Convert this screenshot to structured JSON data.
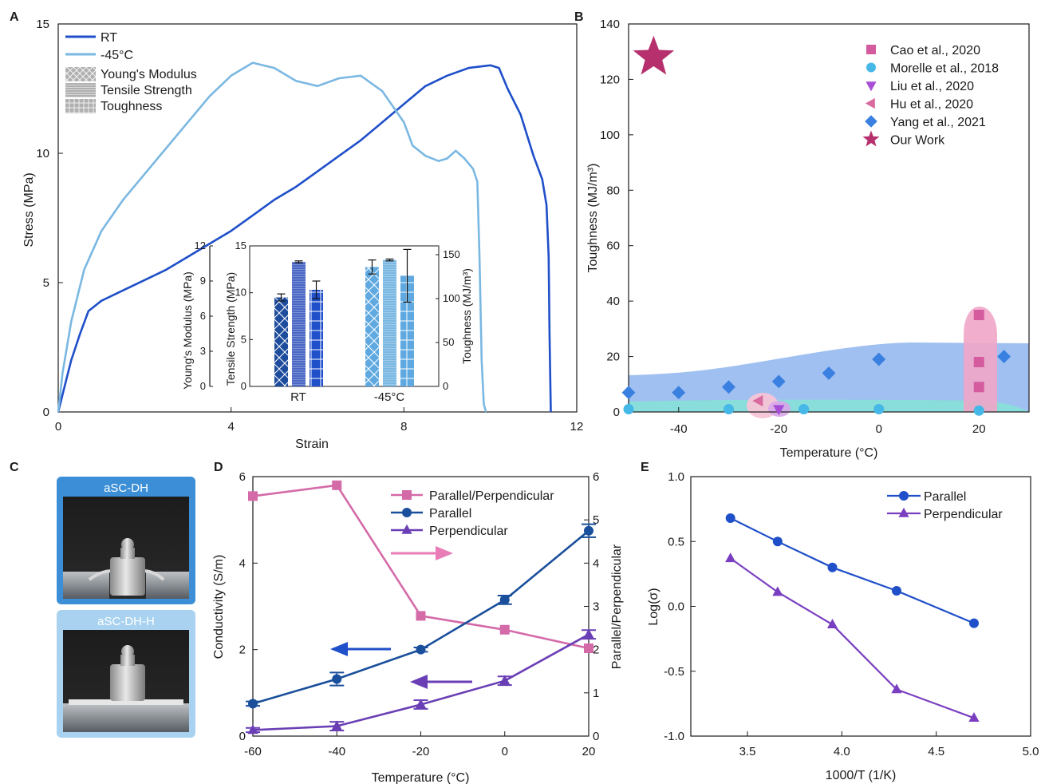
{
  "panels": {
    "A": "A",
    "B": "B",
    "C": "C",
    "D": "D",
    "E": "E"
  },
  "chart_data": [
    {
      "id": "A",
      "type": "line",
      "xlabel": "Strain",
      "ylabel": "Stress (MPa)",
      "xlim": [
        0,
        12
      ],
      "ylim": [
        0,
        15
      ],
      "xticks": [
        0,
        4,
        8,
        12
      ],
      "yticks": [
        0,
        5,
        10,
        15
      ],
      "legend": [
        {
          "name": "RT",
          "color": "#1f4fc9"
        },
        {
          "name": "-45°C",
          "color": "#7ab8e2"
        },
        {
          "name": "Young's Modulus",
          "pattern": "crosshatch"
        },
        {
          "name": "Tensile Strength",
          "pattern": "dense"
        },
        {
          "name": "Toughness",
          "pattern": "grid"
        }
      ],
      "series": [
        {
          "name": "RT",
          "color": "#1f4fc9",
          "points": [
            [
              0,
              0
            ],
            [
              0.15,
              1.0
            ],
            [
              0.3,
              2.0
            ],
            [
              0.5,
              3.0
            ],
            [
              0.7,
              3.9
            ],
            [
              1.0,
              4.3
            ],
            [
              1.5,
              4.7
            ],
            [
              2.0,
              5.1
            ],
            [
              2.5,
              5.5
            ],
            [
              3.0,
              6.0
            ],
            [
              3.5,
              6.5
            ],
            [
              4.0,
              7.0
            ],
            [
              4.5,
              7.6
            ],
            [
              5.0,
              8.2
            ],
            [
              5.5,
              8.7
            ],
            [
              6.0,
              9.3
            ],
            [
              6.5,
              9.9
            ],
            [
              7.0,
              10.5
            ],
            [
              7.5,
              11.2
            ],
            [
              8.0,
              11.9
            ],
            [
              8.5,
              12.6
            ],
            [
              9.0,
              13.0
            ],
            [
              9.5,
              13.3
            ],
            [
              10.0,
              13.4
            ],
            [
              10.2,
              13.3
            ],
            [
              10.4,
              12.5
            ],
            [
              10.7,
              11.5
            ],
            [
              11.0,
              9.9
            ],
            [
              11.2,
              9.0
            ],
            [
              11.3,
              8.0
            ],
            [
              11.35,
              6.0
            ],
            [
              11.37,
              3.0
            ],
            [
              11.4,
              0
            ]
          ]
        },
        {
          "name": "-45°C",
          "color": "#7ab8e2",
          "points": [
            [
              0,
              0
            ],
            [
              0.1,
              1.5
            ],
            [
              0.3,
              3.5
            ],
            [
              0.6,
              5.5
            ],
            [
              1.0,
              7.0
            ],
            [
              1.5,
              8.2
            ],
            [
              2.0,
              9.2
            ],
            [
              2.5,
              10.2
            ],
            [
              3.0,
              11.2
            ],
            [
              3.5,
              12.2
            ],
            [
              4.0,
              13.0
            ],
            [
              4.5,
              13.5
            ],
            [
              5.0,
              13.3
            ],
            [
              5.5,
              12.8
            ],
            [
              6.0,
              12.6
            ],
            [
              6.5,
              12.9
            ],
            [
              7.0,
              13.0
            ],
            [
              7.5,
              12.4
            ],
            [
              8.0,
              11.2
            ],
            [
              8.2,
              10.3
            ],
            [
              8.5,
              9.9
            ],
            [
              8.8,
              9.7
            ],
            [
              9.0,
              9.8
            ],
            [
              9.2,
              10.1
            ],
            [
              9.4,
              9.8
            ],
            [
              9.6,
              9.4
            ],
            [
              9.7,
              8.9
            ],
            [
              9.75,
              6.0
            ],
            [
              9.8,
              2.0
            ],
            [
              9.85,
              0.3
            ],
            [
              9.9,
              0
            ]
          ]
        }
      ]
    },
    {
      "id": "A-inset",
      "type": "bar",
      "categories": [
        "RT",
        "-45°C"
      ],
      "axes": [
        {
          "label": "Young's Modulus (MPa)",
          "ticks": [
            0,
            3,
            6,
            9,
            12
          ],
          "lim": [
            0,
            12
          ]
        },
        {
          "label": "Tensile Strength (MPa)",
          "ticks": [
            0,
            5,
            10,
            15
          ],
          "lim": [
            0,
            15
          ]
        },
        {
          "label": "Toughness (MJ/m³)",
          "ticks": [
            0,
            50,
            100,
            150
          ],
          "lim": [
            0,
            160
          ]
        }
      ],
      "series": [
        {
          "name": "Young's Modulus",
          "axis": 0,
          "values": [
            7.6,
            10.2
          ],
          "errors": [
            0.3,
            0.6
          ],
          "colors": [
            "#1e4c9c",
            "#5fa9e0"
          ],
          "pattern": "crosshatch"
        },
        {
          "name": "Tensile Strength",
          "axis": 1,
          "values": [
            13.3,
            13.5
          ],
          "errors": [
            0.1,
            0.1
          ],
          "colors": [
            "#4a68c4",
            "#7ab8e2"
          ],
          "pattern": "dense"
        },
        {
          "name": "Toughness",
          "axis": 2,
          "values": [
            110,
            126
          ],
          "errors": [
            10,
            30
          ],
          "colors": [
            "#1f4fc9",
            "#5fa9e0"
          ],
          "pattern": "grid"
        }
      ]
    },
    {
      "id": "B",
      "type": "scatter",
      "xlabel": "Temperature (°C)",
      "ylabel": "Toughness (MJ/m³)",
      "xlim": [
        -50,
        30
      ],
      "ylim": [
        0,
        140
      ],
      "xticks": [
        -40,
        -20,
        0,
        20
      ],
      "yticks": [
        0,
        20,
        40,
        60,
        80,
        100,
        120,
        140
      ],
      "series": [
        {
          "name": "Cao et al., 2020",
          "marker": "square",
          "color": "#d45b9e",
          "points": [
            [
              20,
              35
            ],
            [
              20,
              18
            ],
            [
              20,
              9
            ]
          ]
        },
        {
          "name": "Morelle et al., 2018",
          "marker": "circle",
          "color": "#45b8e8",
          "points": [
            [
              -50,
              1
            ],
            [
              -30,
              1
            ],
            [
              -15,
              1
            ],
            [
              0,
              1
            ],
            [
              20,
              0.5
            ]
          ]
        },
        {
          "name": "Liu et al., 2020",
          "marker": "triangle-down",
          "color": "#a64fd6",
          "points": [
            [
              -20,
              1
            ]
          ]
        },
        {
          "name": "Hu et al., 2020",
          "marker": "triangle-left",
          "color": "#d86a9e",
          "points": [
            [
              -24,
              4
            ]
          ]
        },
        {
          "name": "Yang et al., 2021",
          "marker": "diamond",
          "color": "#3a80e0",
          "points": [
            [
              -50,
              7
            ],
            [
              -40,
              7
            ],
            [
              -30,
              9
            ],
            [
              -20,
              11
            ],
            [
              -10,
              14
            ],
            [
              0,
              19
            ],
            [
              25,
              20
            ]
          ]
        },
        {
          "name": "Our Work",
          "marker": "star",
          "color": "#b5306d",
          "points": [
            [
              -45,
              128
            ]
          ]
        }
      ]
    },
    {
      "id": "D",
      "type": "line",
      "xlabel": "Temperature (°C)",
      "ylabel": "Conductivity (S/m)",
      "ylabel_right": "Parallel/Perpendicular",
      "xlim": [
        -60,
        20
      ],
      "ylim": [
        0,
        6
      ],
      "ylim_right": [
        0,
        6
      ],
      "xticks": [
        -60,
        -40,
        -20,
        0,
        20
      ],
      "yticks": [
        0,
        2,
        4,
        6
      ],
      "yticks_right": [
        0,
        1,
        2,
        3,
        4,
        5,
        6
      ],
      "series": [
        {
          "name": "Parallel/Perpendicular",
          "axis": "right",
          "marker": "square",
          "color": "#d46aa8",
          "x": [
            -60,
            -40,
            -20,
            0,
            20
          ],
          "y": [
            5.55,
            5.8,
            2.78,
            2.46,
            2.03
          ],
          "errors": [
            0,
            0,
            0,
            0,
            0
          ]
        },
        {
          "name": "Parallel",
          "axis": "left",
          "marker": "circle",
          "color": "#1a4f9c",
          "x": [
            -60,
            -40,
            -20,
            0,
            20
          ],
          "y": [
            0.75,
            1.32,
            2.0,
            3.15,
            4.75
          ],
          "errors": [
            0.05,
            0.15,
            0.05,
            0.1,
            0.15
          ]
        },
        {
          "name": "Perpendicular",
          "axis": "left",
          "marker": "triangle",
          "color": "#6a3fb5",
          "x": [
            -60,
            -40,
            -20,
            0,
            20
          ],
          "y": [
            0.14,
            0.23,
            0.73,
            1.28,
            2.35
          ],
          "errors": [
            0.05,
            0.1,
            0.1,
            0.1,
            0.1
          ]
        }
      ]
    },
    {
      "id": "E",
      "type": "line",
      "xlabel": "1000/T (1/K)",
      "ylabel": "Log(σ)",
      "xlim": [
        3.2,
        5.0
      ],
      "ylim": [
        -1.0,
        1.0
      ],
      "xticks": [
        3.5,
        4.0,
        4.5,
        5.0
      ],
      "ytick_labels": [
        "1.0",
        "0.5",
        "0.0",
        "-0.5",
        "-1.0"
      ],
      "yticks": [
        1.0,
        0.5,
        0.0,
        -0.5,
        -1.0
      ],
      "series": [
        {
          "name": "Parallel",
          "marker": "circle",
          "color": "#1f4fc9",
          "x": [
            3.41,
            3.66,
            3.95,
            4.29,
            4.7
          ],
          "y": [
            0.68,
            0.5,
            0.3,
            0.12,
            -0.13
          ]
        },
        {
          "name": "Perpendicular",
          "marker": "triangle",
          "color": "#7a3fc0",
          "x": [
            3.41,
            3.66,
            3.95,
            4.29,
            4.7
          ],
          "y": [
            0.37,
            0.11,
            -0.14,
            -0.64,
            -0.86
          ]
        }
      ]
    }
  ],
  "photos": {
    "top_caption": "aSC-DH",
    "bottom_caption": "aSC-DH-H"
  },
  "colors": {
    "rt": "#1f4fc9",
    "cold": "#7ab8e2",
    "frame_top": "#3c8fd6",
    "frame_bottom": "#a8d2f0"
  }
}
